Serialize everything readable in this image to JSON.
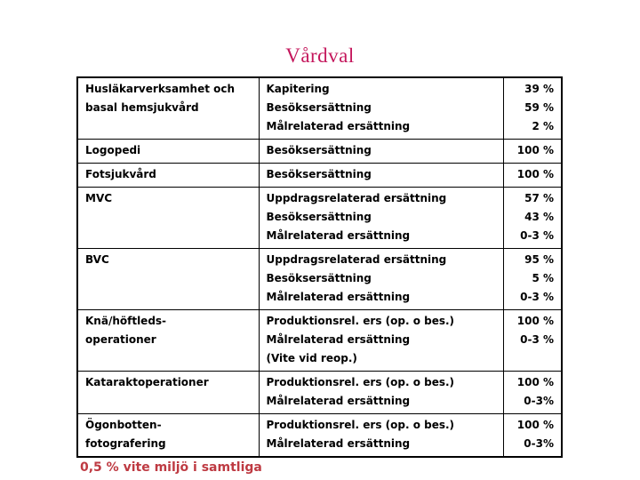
{
  "title": {
    "text": "Vårdval",
    "color": "#c4175c"
  },
  "table": {
    "border_color": "#000000",
    "rows": [
      {
        "service": [
          "Husläkarverksamhet och",
          "basal hemsjukvård"
        ],
        "lines": [
          {
            "label": "Kapitering",
            "value": "39 %"
          },
          {
            "label": "Besöksersättning",
            "value": "59 %"
          },
          {
            "label": "Målrelaterad ersättning",
            "value": "2 %"
          }
        ]
      },
      {
        "service": [
          "Logopedi"
        ],
        "lines": [
          {
            "label": "Besöksersättning",
            "value": "100 %"
          }
        ]
      },
      {
        "service": [
          "Fotsjukvård"
        ],
        "lines": [
          {
            "label": "Besöksersättning",
            "value": "100 %"
          }
        ]
      },
      {
        "service": [
          "MVC"
        ],
        "lines": [
          {
            "label": "Uppdragsrelaterad ersättning",
            "value": "57 %"
          },
          {
            "label": "Besöksersättning",
            "value": "43 %"
          },
          {
            "label": "Målrelaterad ersättning",
            "value": "0-3 %"
          }
        ]
      },
      {
        "service": [
          "BVC"
        ],
        "lines": [
          {
            "label": "Uppdragsrelaterad ersättning",
            "value": "95 %"
          },
          {
            "label": "Besöksersättning",
            "value": "5 %"
          },
          {
            "label": "Målrelaterad ersättning",
            "value": "0-3 %"
          }
        ]
      },
      {
        "service": [
          "Knä/höftleds-",
          "operationer"
        ],
        "lines": [
          {
            "label": "Produktionsrel. ers (op. o bes.)",
            "value": "100 %"
          },
          {
            "label": "Målrelaterad ersättning",
            "value": "0-3 %"
          },
          {
            "label": "(Vite vid reop.)",
            "value": ""
          }
        ]
      },
      {
        "service": [
          "Kataraktoperationer"
        ],
        "lines": [
          {
            "label": "Produktionsrel. ers (op. o bes.)",
            "value": "100 %"
          },
          {
            "label": "Målrelaterad ersättning",
            "value": "0-3%"
          }
        ]
      },
      {
        "service": [
          "Ögonbotten-",
          "fotografering"
        ],
        "lines": [
          {
            "label": "Produktionsrel. ers (op. o bes.)",
            "value": "100 %"
          },
          {
            "label": "Målrelaterad ersättning",
            "value": "0-3%"
          }
        ]
      }
    ]
  },
  "footnote": {
    "text": "0,5 % vite miljö i samtliga",
    "color": "#be3a42"
  }
}
